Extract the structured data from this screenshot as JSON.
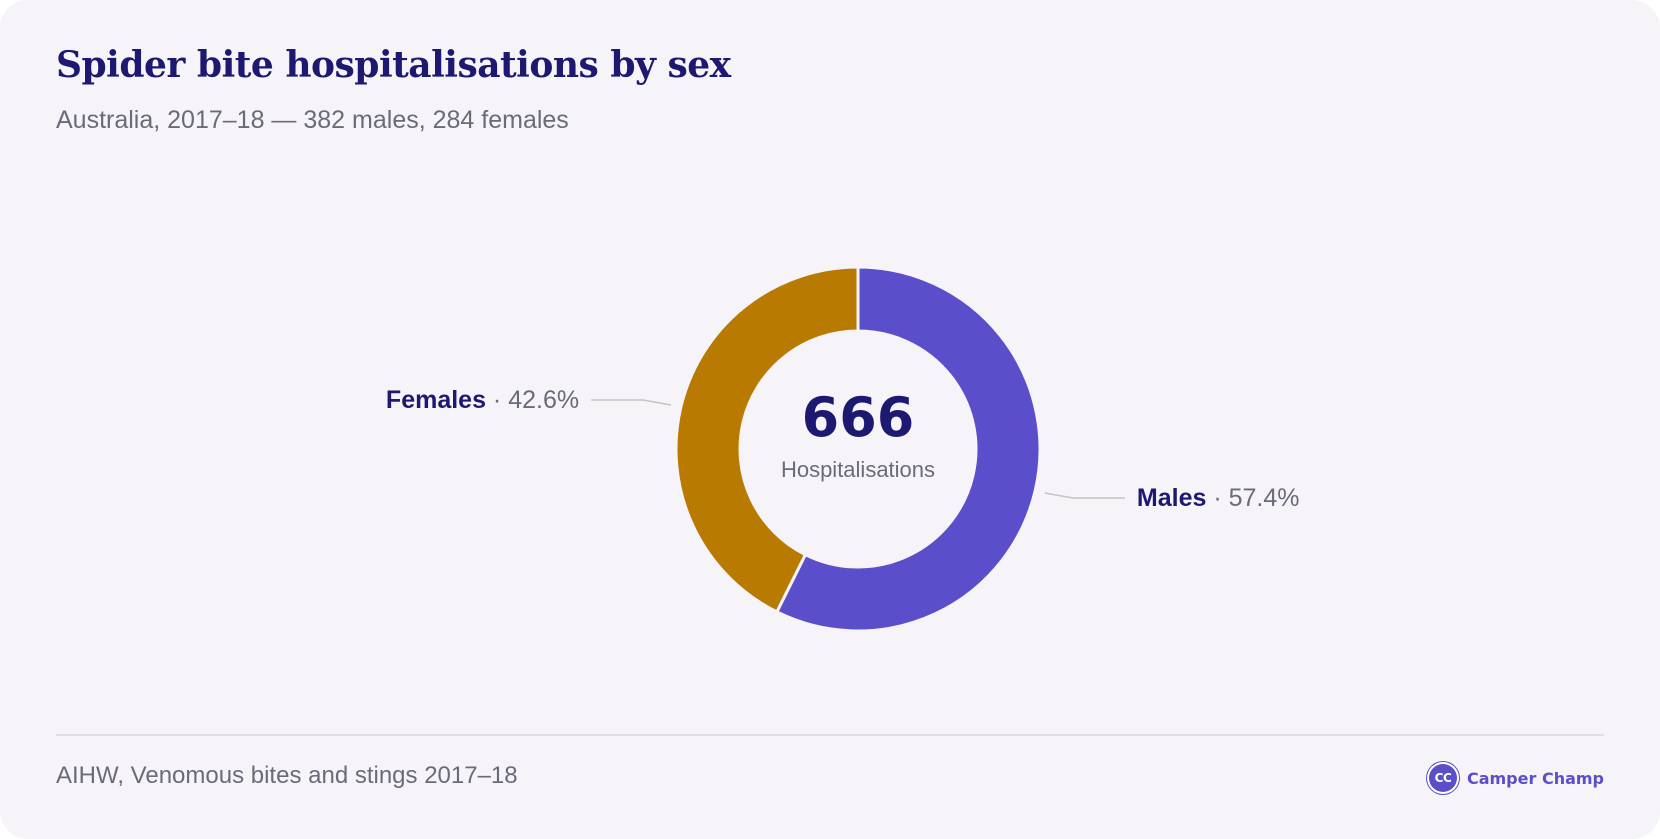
{
  "header": {
    "title": "Spider bite hospitalisations by sex",
    "subtitle": "Australia, 2017–18 — 382 males, 284 females"
  },
  "center": {
    "total": "666",
    "label": "Hospitalisations"
  },
  "footer": {
    "source": "AIHW, Venomous bites and stings 2017–18",
    "brand_initials": "CC",
    "brand_name": "Camper Champ"
  },
  "colors": {
    "males": "#5b4ecb",
    "females": "#b87a00",
    "label_name": "#1d1870",
    "label_value": "#6b6b78",
    "leader": "#c4c4c4"
  },
  "chart_data": {
    "type": "pie",
    "title": "Spider bite hospitalisations by sex",
    "subtitle": "Australia, 2017–18 — 382 males, 284 females",
    "total": 666,
    "slices": [
      {
        "name": "Males",
        "value": 382,
        "percent_label": "57.4%",
        "color": "#5b4ecb"
      },
      {
        "name": "Females",
        "value": 284,
        "percent_label": "42.6%",
        "color": "#b87a00"
      }
    ]
  }
}
